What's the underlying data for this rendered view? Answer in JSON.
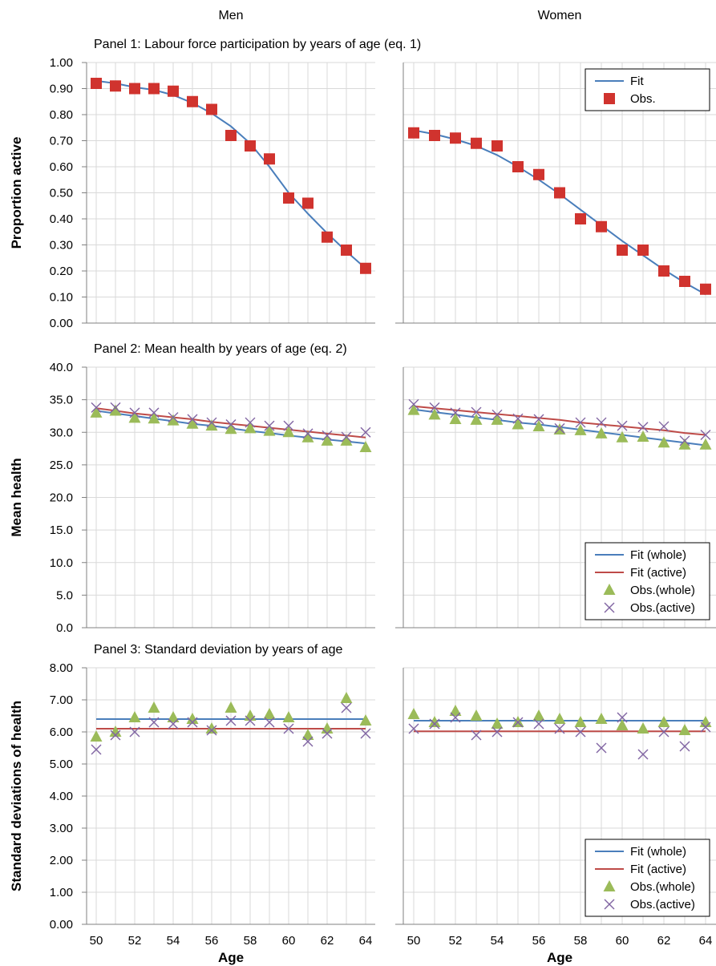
{
  "column_headers": [
    "Men",
    "Women"
  ],
  "x_ticks": [
    "50",
    "52",
    "54",
    "56",
    "58",
    "60",
    "62",
    "64"
  ],
  "x_axis_label": "Age",
  "colors": {
    "fit_whole": "#4a7ebb",
    "fit_active": "#be4b48",
    "obs_panel1": "#d0332e",
    "obs_whole": "#9bbb59",
    "obs_active": "#8064a2",
    "grid": "#d9d9d9",
    "axis": "#808080"
  },
  "chart_data": [
    {
      "type": "scatter",
      "title": "Panel 1: Labour force participation by years of age (eq. 1)",
      "ylabel": "Proportion active",
      "ylim": [
        0,
        1
      ],
      "xlim": [
        49.5,
        64.5
      ],
      "y_ticks": [
        "0.00",
        "0.10",
        "0.20",
        "0.30",
        "0.40",
        "0.50",
        "0.60",
        "0.70",
        "0.80",
        "0.90",
        "1.00"
      ],
      "legend": {
        "position": "top-right",
        "subplot": 1,
        "entries": [
          {
            "label": "Fit",
            "kind": "line",
            "color_key": "fit_whole"
          },
          {
            "label": "Obs.",
            "kind": "square",
            "color_key": "obs_panel1"
          }
        ]
      },
      "subplots": [
        {
          "name": "Men",
          "x": [
            50,
            51,
            52,
            53,
            54,
            55,
            56,
            57,
            58,
            59,
            60,
            61,
            62,
            63,
            64
          ],
          "series": [
            {
              "name": "Fit",
              "kind": "line",
              "color_key": "fit_whole",
              "values": [
                0.93,
                0.92,
                0.905,
                0.895,
                0.875,
                0.845,
                0.805,
                0.755,
                0.69,
                0.6,
                0.5,
                0.42,
                0.345,
                0.275,
                0.21
              ]
            },
            {
              "name": "Obs.",
              "kind": "square",
              "color_key": "obs_panel1",
              "values": [
                0.92,
                0.91,
                0.9,
                0.9,
                0.89,
                0.85,
                0.82,
                0.72,
                0.68,
                0.63,
                0.48,
                0.46,
                0.33,
                0.28,
                0.21
              ]
            }
          ]
        },
        {
          "name": "Women",
          "x": [
            50,
            51,
            52,
            53,
            54,
            55,
            56,
            57,
            58,
            59,
            60,
            61,
            62,
            63,
            64
          ],
          "series": [
            {
              "name": "Fit",
              "kind": "line",
              "color_key": "fit_whole",
              "values": [
                0.74,
                0.725,
                0.705,
                0.68,
                0.645,
                0.6,
                0.55,
                0.495,
                0.435,
                0.375,
                0.315,
                0.26,
                0.205,
                0.155,
                0.11
              ]
            },
            {
              "name": "Obs.",
              "kind": "square",
              "color_key": "obs_panel1",
              "values": [
                0.73,
                0.72,
                0.71,
                0.69,
                0.68,
                0.6,
                0.57,
                0.5,
                0.4,
                0.37,
                0.28,
                0.28,
                0.2,
                0.16,
                0.13
              ]
            }
          ]
        }
      ]
    },
    {
      "type": "scatter",
      "title": "Panel 2: Mean health by years of age (eq. 2)",
      "ylabel": "Mean health",
      "ylim": [
        0,
        40
      ],
      "xlim": [
        49.5,
        64.5
      ],
      "y_ticks": [
        "0.0",
        "5.0",
        "10.0",
        "15.0",
        "20.0",
        "25.0",
        "30.0",
        "35.0",
        "40.0"
      ],
      "legend": {
        "position": "bottom-right",
        "subplot": 1,
        "entries": [
          {
            "label": "Fit (whole)",
            "kind": "line",
            "color_key": "fit_whole"
          },
          {
            "label": "Fit (active)",
            "kind": "line",
            "color_key": "fit_active"
          },
          {
            "label": "Obs.(whole)",
            "kind": "triangle",
            "color_key": "obs_whole"
          },
          {
            "label": "Obs.(active)",
            "kind": "cross",
            "color_key": "obs_active"
          }
        ]
      },
      "subplots": [
        {
          "name": "Men",
          "x": [
            50,
            51,
            52,
            53,
            54,
            55,
            56,
            57,
            58,
            59,
            60,
            61,
            62,
            63,
            64
          ],
          "series": [
            {
              "name": "Fit (whole)",
              "kind": "line",
              "color_key": "fit_whole",
              "values": [
                33.3,
                32.9,
                32.5,
                32.1,
                31.7,
                31.3,
                31.0,
                30.6,
                30.2,
                29.9,
                29.5,
                29.2,
                28.9,
                28.6,
                28.3
              ]
            },
            {
              "name": "Fit (active)",
              "kind": "line",
              "color_key": "fit_active",
              "values": [
                33.7,
                33.3,
                32.9,
                32.6,
                32.3,
                32.0,
                31.6,
                31.3,
                31.0,
                30.7,
                30.4,
                30.1,
                29.8,
                29.5,
                29.2
              ]
            },
            {
              "name": "Obs.(whole)",
              "kind": "triangle",
              "color_key": "obs_whole",
              "values": [
                33.0,
                33.3,
                32.2,
                32.1,
                31.8,
                31.3,
                31.0,
                30.5,
                30.6,
                30.2,
                30.0,
                29.2,
                28.7,
                28.7,
                27.7
              ]
            },
            {
              "name": "Obs.(active)",
              "kind": "cross",
              "color_key": "obs_active",
              "values": [
                33.8,
                33.8,
                33.0,
                33.0,
                32.3,
                32.0,
                31.5,
                31.2,
                31.5,
                31.0,
                31.0,
                29.8,
                29.5,
                29.3,
                30.0
              ]
            }
          ]
        },
        {
          "name": "Women",
          "x": [
            50,
            51,
            52,
            53,
            54,
            55,
            56,
            57,
            58,
            59,
            60,
            61,
            62,
            63,
            64
          ],
          "series": [
            {
              "name": "Fit (whole)",
              "kind": "line",
              "color_key": "fit_whole",
              "values": [
                33.5,
                33.1,
                32.7,
                32.3,
                31.9,
                31.5,
                31.2,
                30.8,
                30.4,
                30.0,
                29.6,
                29.2,
                28.8,
                28.4,
                28.0
              ]
            },
            {
              "name": "Fit (active)",
              "kind": "line",
              "color_key": "fit_active",
              "values": [
                34.0,
                33.7,
                33.4,
                33.1,
                32.8,
                32.5,
                32.2,
                31.9,
                31.5,
                31.2,
                30.9,
                30.6,
                30.3,
                29.9,
                29.6
              ]
            },
            {
              "name": "Obs.(whole)",
              "kind": "triangle",
              "color_key": "obs_whole",
              "values": [
                33.4,
                32.7,
                32.0,
                31.9,
                31.9,
                31.2,
                30.9,
                30.4,
                30.3,
                29.8,
                29.2,
                29.3,
                28.4,
                28.1,
                28.1
              ]
            },
            {
              "name": "Obs.(active)",
              "kind": "cross",
              "color_key": "obs_active",
              "values": [
                34.3,
                33.8,
                33.0,
                33.1,
                32.7,
                32.1,
                32.0,
                30.6,
                31.5,
                31.5,
                31.0,
                30.8,
                30.9,
                28.7,
                29.6
              ]
            }
          ]
        }
      ]
    },
    {
      "type": "scatter",
      "title": "Panel 3: Standard deviation by years of age",
      "ylabel": "Standard deviations of health",
      "ylim": [
        0,
        8
      ],
      "xlim": [
        49.5,
        64.5
      ],
      "y_ticks": [
        "0.00",
        "1.00",
        "2.00",
        "3.00",
        "4.00",
        "5.00",
        "6.00",
        "7.00",
        "8.00"
      ],
      "legend": {
        "position": "bottom-right",
        "subplot": 1,
        "entries": [
          {
            "label": "Fit (whole)",
            "kind": "line",
            "color_key": "fit_whole"
          },
          {
            "label": "Fit (active)",
            "kind": "line",
            "color_key": "fit_active"
          },
          {
            "label": "Obs.(whole)",
            "kind": "triangle",
            "color_key": "obs_whole"
          },
          {
            "label": "Obs.(active)",
            "kind": "cross",
            "color_key": "obs_active"
          }
        ]
      },
      "subplots": [
        {
          "name": "Men",
          "x": [
            50,
            51,
            52,
            53,
            54,
            55,
            56,
            57,
            58,
            59,
            60,
            61,
            62,
            63,
            64
          ],
          "series": [
            {
              "name": "Fit (whole)",
              "kind": "line",
              "color_key": "fit_whole",
              "values": [
                6.4,
                6.4,
                6.4,
                6.4,
                6.4,
                6.4,
                6.4,
                6.4,
                6.4,
                6.4,
                6.4,
                6.4,
                6.4,
                6.4,
                6.4
              ]
            },
            {
              "name": "Fit (active)",
              "kind": "line",
              "color_key": "fit_active",
              "values": [
                6.1,
                6.1,
                6.1,
                6.1,
                6.1,
                6.1,
                6.1,
                6.1,
                6.1,
                6.1,
                6.1,
                6.1,
                6.1,
                6.1,
                6.1
              ]
            },
            {
              "name": "Obs.(whole)",
              "kind": "triangle",
              "color_key": "obs_whole",
              "values": [
                5.85,
                6.0,
                6.45,
                6.75,
                6.45,
                6.4,
                6.1,
                6.75,
                6.5,
                6.55,
                6.45,
                5.9,
                6.1,
                7.05,
                6.35
              ]
            },
            {
              "name": "Obs.(active)",
              "kind": "cross",
              "color_key": "obs_active",
              "values": [
                5.45,
                5.9,
                6.0,
                6.3,
                6.25,
                6.3,
                6.05,
                6.35,
                6.35,
                6.3,
                6.1,
                5.7,
                5.95,
                6.75,
                5.95
              ]
            }
          ]
        },
        {
          "name": "Women",
          "x": [
            50,
            51,
            52,
            53,
            54,
            55,
            56,
            57,
            58,
            59,
            60,
            61,
            62,
            63,
            64
          ],
          "series": [
            {
              "name": "Fit (whole)",
              "kind": "line",
              "color_key": "fit_whole",
              "values": [
                6.35,
                6.35,
                6.35,
                6.35,
                6.35,
                6.35,
                6.35,
                6.35,
                6.35,
                6.35,
                6.35,
                6.35,
                6.35,
                6.35,
                6.35
              ]
            },
            {
              "name": "Fit (active)",
              "kind": "line",
              "color_key": "fit_active",
              "values": [
                6.02,
                6.02,
                6.02,
                6.02,
                6.02,
                6.02,
                6.02,
                6.02,
                6.02,
                6.02,
                6.02,
                6.02,
                6.02,
                6.02,
                6.02
              ]
            },
            {
              "name": "Obs.(whole)",
              "kind": "triangle",
              "color_key": "obs_whole",
              "values": [
                6.55,
                6.3,
                6.65,
                6.5,
                6.25,
                6.3,
                6.5,
                6.4,
                6.3,
                6.4,
                6.2,
                6.1,
                6.3,
                6.05,
                6.3
              ]
            },
            {
              "name": "Obs.(active)",
              "kind": "cross",
              "color_key": "obs_active",
              "values": [
                6.1,
                6.25,
                6.45,
                5.9,
                6.0,
                6.3,
                6.25,
                6.1,
                6.0,
                5.5,
                6.45,
                5.3,
                6.0,
                5.55,
                6.15
              ]
            }
          ]
        }
      ]
    }
  ]
}
